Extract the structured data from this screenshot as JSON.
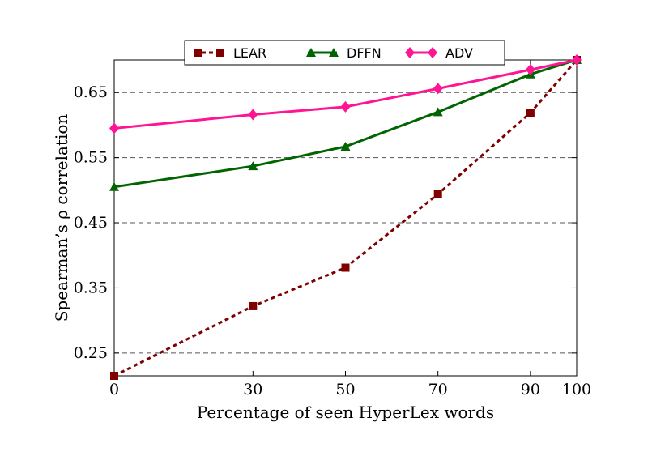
{
  "chart_data": {
    "type": "line",
    "title": "",
    "xlabel": "Percentage of seen HyperLex words",
    "ylabel": "Spearman’s ρ correlation",
    "x": [
      0,
      30,
      50,
      70,
      90,
      100
    ],
    "x_tick_labels": [
      "0",
      "30",
      "50",
      "70",
      "90",
      "100"
    ],
    "y_ticks": [
      0.25,
      0.35,
      0.45,
      0.55,
      0.65
    ],
    "y_tick_labels": [
      "0.25",
      "0.35",
      "0.45",
      "0.55",
      "0.65"
    ],
    "xlim": [
      0,
      100
    ],
    "ylim": [
      0.215,
      0.7
    ],
    "grid": "horizontal dashed",
    "legend_position": "top",
    "series": [
      {
        "name": "LEAR",
        "color": "#800000",
        "marker": "square",
        "line_style": "dashed",
        "values": [
          0.215,
          0.322,
          0.381,
          0.494,
          0.619,
          0.7
        ]
      },
      {
        "name": "DFFN",
        "color": "#006400",
        "marker": "triangle",
        "line_style": "solid",
        "values": [
          0.505,
          0.537,
          0.567,
          0.62,
          0.678,
          0.7
        ]
      },
      {
        "name": "ADV",
        "color": "#ff1493",
        "marker": "diamond",
        "line_style": "solid",
        "values": [
          0.595,
          0.616,
          0.628,
          0.656,
          0.685,
          0.7
        ]
      }
    ]
  }
}
